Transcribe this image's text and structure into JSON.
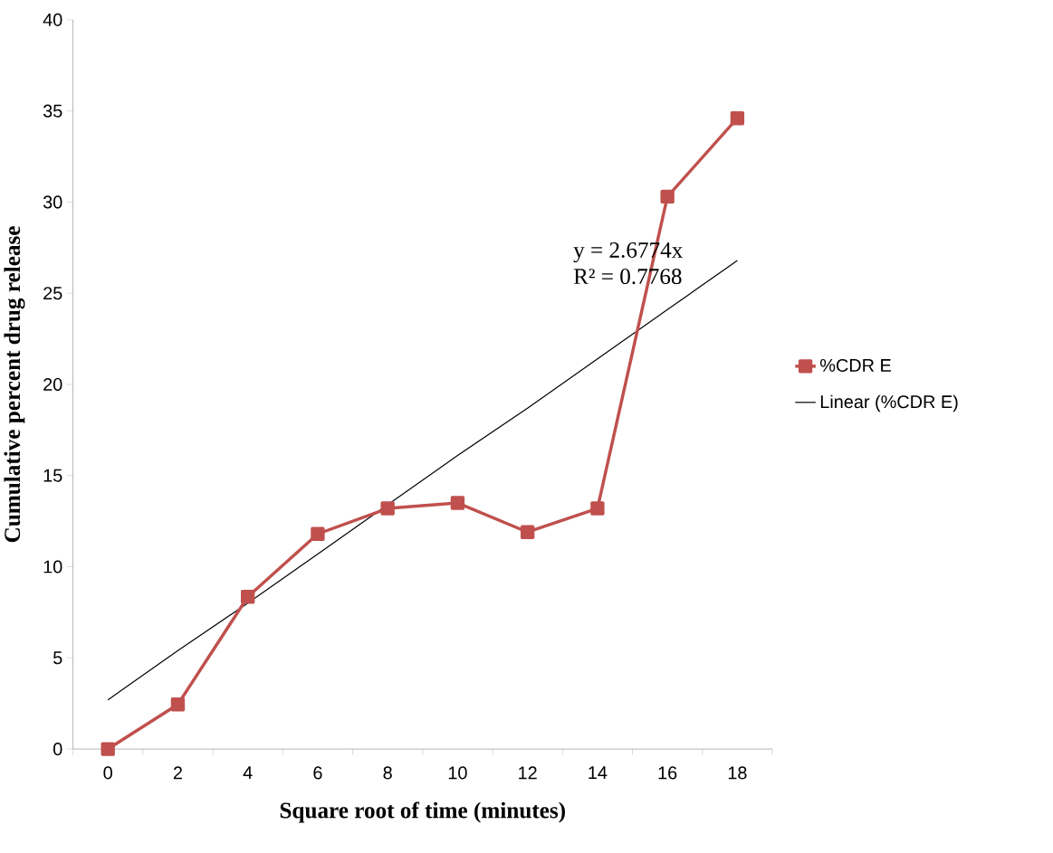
{
  "chart_data": {
    "type": "line",
    "categories": [
      "0",
      "2",
      "4",
      "6",
      "8",
      "10",
      "12",
      "14",
      "16",
      "18"
    ],
    "series": [
      {
        "name": "%CDR E",
        "color": "#c0504d",
        "marker": "square",
        "values": [
          0,
          2.45,
          8.35,
          11.8,
          13.2,
          13.5,
          11.9,
          13.2,
          30.3,
          34.6
        ]
      },
      {
        "name": "Linear (%CDR E)",
        "color": "#000000",
        "marker": "none",
        "values": [
          2.7,
          5.4,
          8.0,
          10.7,
          13.4,
          16.1,
          18.7,
          21.4,
          24.1,
          26.8
        ]
      }
    ],
    "xlabel": "Square root of time (minutes)",
    "ylabel": "Cumulative percent drug release",
    "ylim": [
      0,
      40
    ],
    "yticks": [
      0,
      5,
      10,
      15,
      20,
      25,
      30,
      35,
      40
    ],
    "legend": "right",
    "annotations": [
      "y = 2.6774x",
      "R² = 0.7768"
    ]
  }
}
